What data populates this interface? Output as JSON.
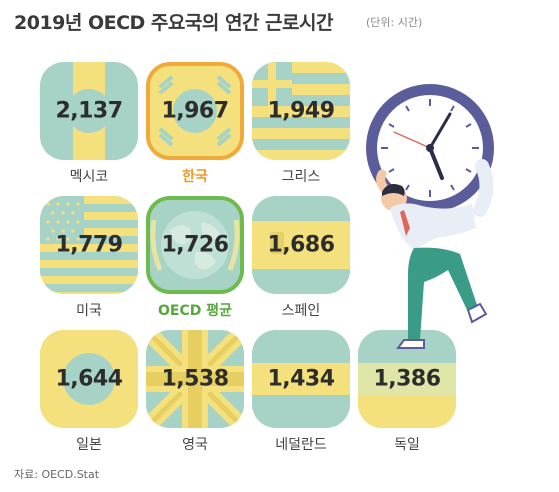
{
  "title": "2019년 OECD 주요국의 연간 근로시간",
  "unit": "(단위: 시간)",
  "source": "자료: OECD.Stat",
  "chart_data": {
    "type": "table",
    "title": "2019년 OECD 주요국의 연간 근로시간",
    "unit": "(단위: 시간)",
    "categories": [
      "멕시코",
      "한국",
      "그리스",
      "미국",
      "OECD 평균",
      "스페인",
      "일본",
      "영국",
      "네덜란드",
      "독일"
    ],
    "values": [
      2137,
      1967,
      1949,
      1779,
      1726,
      1686,
      1644,
      1538,
      1434,
      1386
    ],
    "labels": [
      "2,137",
      "1,967",
      "1,949",
      "1,779",
      "1,726",
      "1,686",
      "1,644",
      "1,538",
      "1,434",
      "1,386"
    ],
    "highlight": {
      "한국": "#f1a93a",
      "OECD 평균": "#6dbb4f"
    }
  },
  "colors": {
    "yellow": "#f4e07c",
    "teal": "#a6d3c6",
    "orange": "#f1a93a",
    "green": "#6dbb4f"
  },
  "flag_icons": [
    "mexico-flag-icon",
    "korea-flag-icon",
    "greece-flag-icon",
    "usa-flag-icon",
    "oecd-globe-icon",
    "spain-flag-icon",
    "japan-flag-icon",
    "uk-flag-icon",
    "netherlands-flag-icon",
    "germany-flag-icon"
  ]
}
